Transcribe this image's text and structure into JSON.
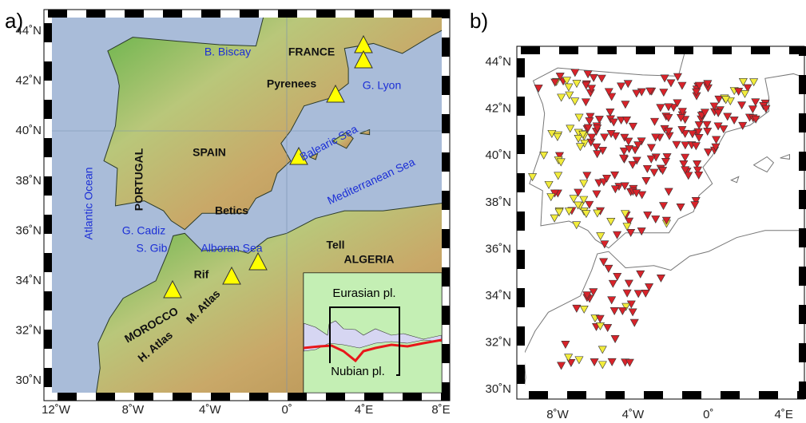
{
  "panel_a": {
    "label": "a)",
    "lat_labels": [
      "44˚N",
      "42˚N",
      "40˚N",
      "38˚N",
      "36˚N",
      "34˚N",
      "32˚N",
      "30˚N"
    ],
    "lon_labels": [
      "12˚W",
      "8˚W",
      "4˚W",
      "0˚",
      "4˚E",
      "8˚E"
    ],
    "places": [
      "B. Biscay",
      "FRANCE",
      "Pyrenees",
      "G. Lyon",
      "Balearic Sea",
      "Mediterranean Sea",
      "Atlantic Ocean",
      "PORTUGAL",
      "SPAIN",
      "Betics",
      "G. Cadiz",
      "S. Gib",
      "Alboran Sea",
      "Tell",
      "ALGERIA",
      "Rif",
      "MOROCCO",
      "M. Atlas",
      "H. Atlas"
    ],
    "inset": {
      "north": "Eurasian pl.",
      "south": "Nubian pl."
    }
  },
  "panel_b": {
    "label": "b)",
    "lat_labels": [
      "44˚N",
      "42˚N",
      "40˚N",
      "38˚N",
      "36˚N",
      "34˚N",
      "32˚N",
      "30˚N"
    ],
    "lon_labels": [
      "8˚W",
      "4˚W",
      "0˚",
      "4˚E"
    ]
  }
}
